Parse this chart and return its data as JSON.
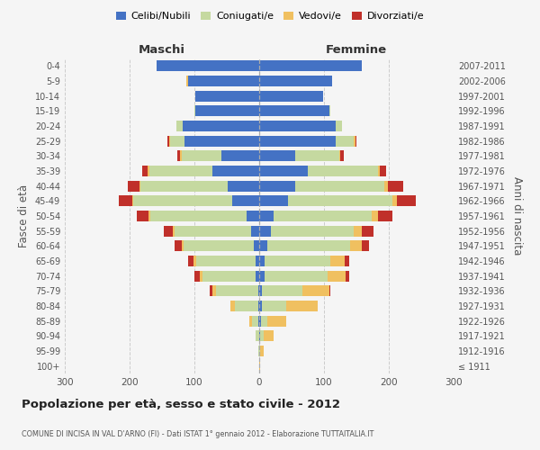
{
  "age_groups": [
    "100+",
    "95-99",
    "90-94",
    "85-89",
    "80-84",
    "75-79",
    "70-74",
    "65-69",
    "60-64",
    "55-59",
    "50-54",
    "45-49",
    "40-44",
    "35-39",
    "30-34",
    "25-29",
    "20-24",
    "15-19",
    "10-14",
    "5-9",
    "0-4"
  ],
  "birth_years": [
    "≤ 1911",
    "1912-1916",
    "1917-1921",
    "1922-1926",
    "1927-1931",
    "1932-1936",
    "1937-1941",
    "1942-1946",
    "1947-1951",
    "1952-1956",
    "1957-1961",
    "1962-1966",
    "1967-1971",
    "1972-1976",
    "1977-1981",
    "1982-1986",
    "1987-1991",
    "1992-1996",
    "1997-2001",
    "2002-2006",
    "2007-2011"
  ],
  "male_celibe": [
    0,
    0,
    0,
    1,
    2,
    2,
    5,
    5,
    8,
    12,
    20,
    42,
    48,
    72,
    58,
    115,
    118,
    98,
    98,
    110,
    158
  ],
  "male_coniugato": [
    0,
    2,
    5,
    10,
    35,
    65,
    82,
    92,
    108,
    118,
    148,
    152,
    135,
    98,
    62,
    22,
    10,
    2,
    0,
    0,
    0
  ],
  "male_vedovo": [
    0,
    0,
    0,
    4,
    8,
    5,
    5,
    5,
    4,
    3,
    3,
    2,
    2,
    2,
    2,
    2,
    0,
    0,
    0,
    2,
    0
  ],
  "male_divorziato": [
    0,
    0,
    0,
    0,
    0,
    5,
    8,
    8,
    10,
    14,
    18,
    20,
    18,
    8,
    5,
    2,
    0,
    0,
    0,
    0,
    0
  ],
  "female_celibe": [
    0,
    0,
    2,
    3,
    4,
    4,
    8,
    8,
    12,
    18,
    22,
    44,
    55,
    75,
    55,
    118,
    118,
    108,
    98,
    112,
    158
  ],
  "female_coniugata": [
    0,
    2,
    5,
    10,
    38,
    62,
    98,
    102,
    128,
    128,
    152,
    162,
    138,
    108,
    68,
    28,
    10,
    2,
    0,
    0,
    0
  ],
  "female_vedova": [
    2,
    5,
    15,
    28,
    48,
    42,
    28,
    22,
    18,
    13,
    10,
    7,
    5,
    3,
    2,
    2,
    0,
    0,
    0,
    0,
    0
  ],
  "female_divorziata": [
    0,
    0,
    0,
    0,
    0,
    2,
    5,
    7,
    12,
    18,
    22,
    28,
    24,
    10,
    5,
    2,
    0,
    0,
    0,
    0,
    0
  ],
  "colors": {
    "celibe": "#4472c4",
    "coniugato": "#c5d9a0",
    "vedovo": "#f0c060",
    "divorziato": "#c0302a"
  },
  "title": "Popolazione per età, sesso e stato civile - 2012",
  "subtitle": "COMUNE DI INCISA IN VAL D'ARNO (FI) - Dati ISTAT 1° gennaio 2012 - Elaborazione TUTTAITALIA.IT",
  "xlabel_left": "Maschi",
  "xlabel_right": "Femmine",
  "ylabel_left": "Fasce di età",
  "ylabel_right": "Anni di nascita",
  "xlim": 300,
  "bg_color": "#f5f5f5",
  "legend_labels": [
    "Celibi/Nubili",
    "Coniugati/e",
    "Vedovi/e",
    "Divorziati/e"
  ]
}
